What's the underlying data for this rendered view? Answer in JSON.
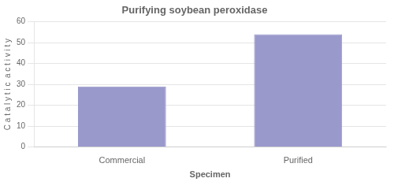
{
  "chart_data": {
    "type": "bar",
    "title": "Purifying soybean peroxidase",
    "xlabel": "Specimen",
    "ylabel": "C a t a l y t i c  a c t i v i t y",
    "categories": [
      "Commercial",
      "Purified"
    ],
    "values": [
      29,
      54
    ],
    "color": "#9999cc",
    "ylim": [
      0,
      60
    ],
    "yticks": [
      0,
      10,
      20,
      30,
      40,
      50,
      60
    ],
    "grid": true
  }
}
